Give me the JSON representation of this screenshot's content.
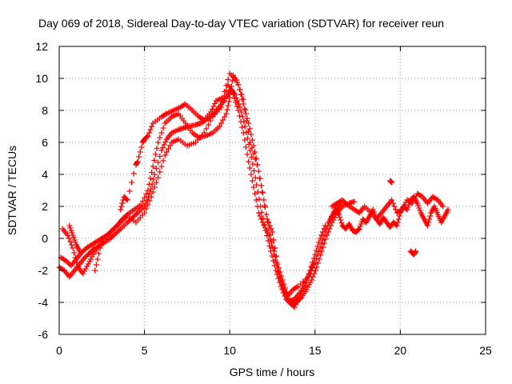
{
  "chart_data": {
    "type": "scatter",
    "title": "Day 069 of 2018, Sidereal Day-to-day VTEC variation (SDTVAR) for receiver reun",
    "xlabel": "GPS time / hours",
    "ylabel": "SDTVAR / TECUs",
    "xlim": [
      0,
      25
    ],
    "ylim": [
      -6,
      12
    ],
    "xticks": [
      0,
      5,
      10,
      15,
      20,
      25
    ],
    "yticks": [
      -6,
      -4,
      -2,
      0,
      2,
      4,
      6,
      8,
      10,
      12
    ],
    "x_tick_labels": [
      "0",
      "5",
      "10",
      "15",
      "20",
      "25"
    ],
    "y_tick_labels": [
      "-6",
      "-4",
      "-2",
      "0",
      "2",
      "4",
      "6",
      "8",
      "10",
      "12"
    ],
    "grid": true,
    "legend": "none",
    "marker": "plus",
    "series": [
      {
        "name": "main-trace-a",
        "color": "#ff0000",
        "x": [
          0.0,
          0.3,
          0.6,
          0.9,
          1.2,
          1.5,
          1.8,
          2.0,
          2.3,
          2.6,
          3.0,
          3.3,
          3.6,
          4.0,
          4.3,
          4.6,
          5.0,
          5.3,
          5.6,
          6.0,
          6.3,
          6.6,
          7.0,
          7.3,
          7.6,
          8.0,
          8.3,
          8.6,
          9.0,
          9.3,
          9.6,
          9.9,
          10.1,
          10.3,
          10.6,
          10.9,
          11.2,
          11.5,
          11.8,
          12.1,
          12.4,
          12.7,
          13.0,
          13.3,
          13.6,
          13.9,
          14.2,
          14.5,
          14.8,
          15.1,
          15.4,
          15.7,
          16.0,
          16.3,
          16.6,
          17.0,
          17.3
        ],
        "y": [
          -1.8,
          -2.0,
          -2.4,
          -2.0,
          -1.6,
          -1.2,
          -0.9,
          -0.7,
          -0.5,
          -0.3,
          0.0,
          0.3,
          0.6,
          1.0,
          1.3,
          1.6,
          2.0,
          2.8,
          4.0,
          5.5,
          6.2,
          6.6,
          6.8,
          6.9,
          7.0,
          7.1,
          7.2,
          7.4,
          7.7,
          8.1,
          8.5,
          9.0,
          9.3,
          9.0,
          8.2,
          7.0,
          5.5,
          3.8,
          2.0,
          0.5,
          -0.8,
          -2.0,
          -3.0,
          -3.8,
          -4.1,
          -4.0,
          -3.7,
          -3.2,
          -2.6,
          -1.8,
          -0.8,
          0.2,
          1.0,
          1.6,
          2.0,
          2.2,
          2.3
        ]
      },
      {
        "name": "main-trace-b",
        "color": "#ff0000",
        "x": [
          0.1,
          0.4,
          0.7,
          1.0,
          1.3,
          1.6,
          1.9,
          2.2,
          2.5,
          2.8,
          3.1,
          3.4,
          3.7,
          4.0,
          4.4,
          4.8,
          5.2,
          5.5,
          5.8,
          6.2,
          6.6,
          7.0,
          7.4,
          7.8,
          8.2,
          8.6,
          9.0,
          9.4,
          9.8,
          10.0,
          10.2,
          10.5,
          10.8,
          11.1,
          11.4,
          11.7,
          12.0,
          12.3,
          12.6,
          12.9,
          13.2,
          13.5,
          13.8,
          14.1,
          14.4,
          14.7,
          15.0,
          15.3,
          15.6,
          15.9,
          16.2,
          16.5
        ],
        "y": [
          -1.2,
          -1.4,
          -1.7,
          -1.3,
          -0.9,
          -0.6,
          -0.4,
          -0.2,
          0.0,
          0.2,
          0.5,
          0.8,
          1.2,
          1.5,
          1.8,
          2.1,
          3.0,
          4.5,
          6.0,
          7.2,
          7.6,
          7.8,
          7.2,
          6.6,
          6.3,
          6.4,
          6.6,
          7.0,
          7.8,
          8.8,
          10.2,
          9.6,
          8.4,
          7.2,
          5.8,
          4.2,
          2.4,
          0.6,
          -1.0,
          -2.4,
          -3.4,
          -3.9,
          -3.8,
          -3.4,
          -2.8,
          -2.2,
          -1.5,
          -0.6,
          0.4,
          1.2,
          1.8,
          2.2
        ]
      },
      {
        "name": "main-trace-c",
        "color": "#ff0000",
        "x": [
          0.2,
          0.5,
          0.8,
          1.1,
          1.4,
          1.7,
          2.0,
          2.4,
          2.8,
          3.2,
          3.6,
          4.0,
          4.5,
          5.0,
          5.4,
          5.8,
          6.2,
          6.6,
          7.0,
          7.5,
          8.0,
          8.5,
          9.0,
          9.5,
          9.9,
          10.2,
          10.5,
          10.8,
          11.1,
          11.4,
          11.7,
          12.0,
          12.3,
          12.6,
          12.9,
          13.2,
          13.5,
          13.8,
          14.1,
          14.4,
          14.7,
          15.0,
          15.3,
          15.6
        ],
        "y": [
          0.6,
          0.2,
          -0.6,
          -1.8,
          -2.2,
          -1.6,
          -1.0,
          -0.4,
          0.1,
          0.6,
          1.0,
          1.4,
          1.0,
          1.6,
          2.6,
          3.8,
          5.2,
          6.0,
          6.2,
          5.8,
          6.0,
          6.6,
          7.6,
          8.2,
          9.6,
          9.0,
          8.0,
          6.6,
          4.8,
          3.2,
          1.6,
          0.8,
          0.2,
          -0.8,
          -2.2,
          -3.2,
          -4.0,
          -4.3,
          -3.6,
          -3.0,
          -2.0,
          -1.0,
          0.0,
          0.8
        ]
      },
      {
        "name": "scattered-points",
        "color": "#ff0000",
        "x": [
          0.6,
          0.8,
          1.0,
          1.2,
          2.1,
          2.4,
          3.6,
          3.8,
          4.0,
          4.5,
          4.6,
          4.9,
          5.0,
          5.2,
          5.5,
          6.0,
          6.3,
          6.7,
          7.1,
          7.4,
          7.8,
          8.2,
          8.5,
          8.9,
          9.2,
          9.6,
          10.0,
          10.4,
          10.8,
          11.2,
          11.6,
          12.2,
          12.5,
          12.8,
          13.1,
          13.4,
          13.7,
          14.0,
          14.6,
          14.9
        ],
        "y": [
          0.8,
          0.2,
          -0.4,
          -0.8,
          -2.0,
          -0.6,
          1.8,
          2.6,
          2.4,
          4.6,
          4.8,
          6.0,
          6.2,
          6.4,
          7.2,
          7.6,
          7.8,
          8.0,
          8.2,
          8.4,
          8.0,
          7.6,
          7.4,
          7.9,
          8.6,
          8.8,
          10.3,
          9.9,
          8.7,
          6.0,
          4.6,
          1.2,
          0.4,
          -1.6,
          -2.6,
          -3.6,
          -3.2,
          -3.0,
          -2.4,
          -1.6
        ]
      },
      {
        "name": "late-cluster",
        "color": "#ff0000",
        "x": [
          15.8,
          16.0,
          16.2,
          16.4,
          16.6,
          16.8,
          17.0,
          17.2,
          17.4,
          17.6,
          17.8,
          18.0,
          18.2,
          18.4,
          18.6,
          18.8,
          19.0,
          19.2,
          19.4,
          19.6,
          19.8,
          20.0,
          20.2,
          20.4,
          20.6,
          20.8,
          21.0,
          21.2,
          21.4,
          21.6,
          21.8,
          22.0,
          22.2,
          22.4,
          22.6,
          22.8
        ],
        "y": [
          1.0,
          1.4,
          1.8,
          1.5,
          0.8,
          0.6,
          0.9,
          0.5,
          0.4,
          0.6,
          1.2,
          1.0,
          1.4,
          1.8,
          1.2,
          0.9,
          1.3,
          1.0,
          0.7,
          1.0,
          0.8,
          1.6,
          2.0,
          1.8,
          2.4,
          2.6,
          2.2,
          1.6,
          1.2,
          0.8,
          1.6,
          2.0,
          1.5,
          1.0,
          1.4,
          1.8
        ]
      },
      {
        "name": "late-upper",
        "color": "#ff0000",
        "x": [
          16.0,
          16.3,
          16.6,
          16.9,
          17.3,
          17.6,
          17.9,
          18.3,
          18.6,
          18.9,
          19.2,
          19.5,
          19.8,
          20.1,
          20.4,
          20.7,
          21.0,
          21.3,
          21.6,
          21.9,
          22.2,
          22.5
        ],
        "y": [
          2.0,
          2.2,
          2.4,
          2.1,
          1.8,
          1.6,
          2.0,
          1.6,
          1.2,
          1.6,
          2.0,
          2.4,
          1.6,
          1.8,
          2.4,
          2.2,
          2.8,
          2.6,
          2.2,
          2.6,
          2.4,
          2.0
        ]
      },
      {
        "name": "late-outliers",
        "color": "#ff0000",
        "x": [
          19.4,
          19.5,
          20.6,
          20.7,
          20.8,
          20.9
        ],
        "y": [
          3.6,
          3.5,
          -0.8,
          -0.9,
          -1.0,
          -0.8
        ]
      }
    ]
  }
}
